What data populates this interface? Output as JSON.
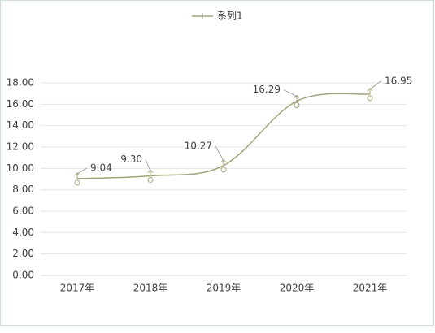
{
  "chart_data": {
    "type": "line",
    "categories": [
      "2017年",
      "2018年",
      "2019年",
      "2020年",
      "2021年"
    ],
    "series": [
      {
        "name": "系列1",
        "color": "#a3a37a",
        "values": [
          9.04,
          9.3,
          10.27,
          16.29,
          16.95
        ],
        "value_labels": [
          "9.04",
          "9.30",
          "10.27",
          "16.29",
          "16.95"
        ]
      }
    ],
    "ylim": [
      0,
      18
    ],
    "yticks": [
      {
        "value": 0,
        "label": "0.00"
      },
      {
        "value": 2,
        "label": "2.00"
      },
      {
        "value": 4,
        "label": "4.00"
      },
      {
        "value": 6,
        "label": "6.00"
      },
      {
        "value": 8,
        "label": "8.00"
      },
      {
        "value": 10,
        "label": "10.00"
      },
      {
        "value": 12,
        "label": "12.00"
      },
      {
        "value": 14,
        "label": "14.00"
      },
      {
        "value": 16,
        "label": "16.00"
      },
      {
        "value": 18,
        "label": "18.00"
      }
    ],
    "grid": true,
    "smooth": true,
    "legend": "top"
  }
}
